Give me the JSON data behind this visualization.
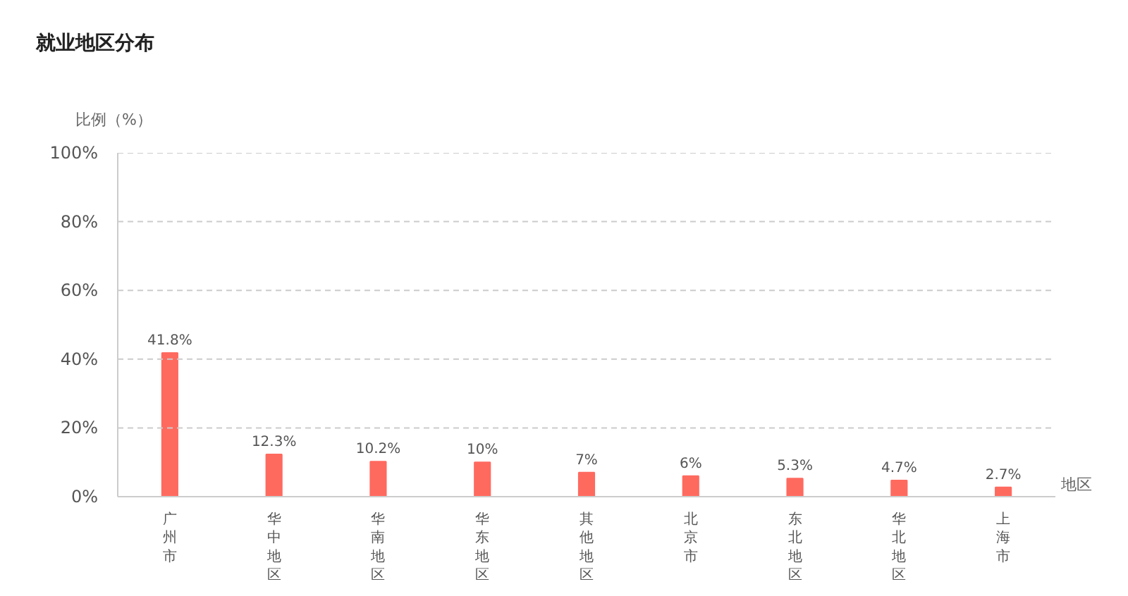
{
  "chart_data": {
    "type": "bar",
    "title": "就业地区分布",
    "ylabel": "比例（%）",
    "xlabel": "地区",
    "categories": [
      "广州市",
      "华中地区",
      "华南地区",
      "华东地区",
      "其他地区",
      "北京市",
      "东北地区",
      "华北地区",
      "上海市"
    ],
    "values": [
      41.8,
      12.3,
      10.2,
      10,
      7,
      6,
      5.3,
      4.7,
      2.7
    ],
    "value_labels": [
      "41.8%",
      "12.3%",
      "10.2%",
      "10%",
      "7%",
      "6%",
      "5.3%",
      "4.7%",
      "2.7%"
    ],
    "color": "#ff6a5f",
    "ylim": [
      0,
      100
    ],
    "yticks": [
      {
        "value": 0,
        "label": "0%"
      },
      {
        "value": 20,
        "label": "20%"
      },
      {
        "value": 40,
        "label": "40%"
      },
      {
        "value": 60,
        "label": "60%"
      },
      {
        "value": 80,
        "label": "80%"
      },
      {
        "value": 100,
        "label": "100%"
      }
    ],
    "grid": "y"
  }
}
